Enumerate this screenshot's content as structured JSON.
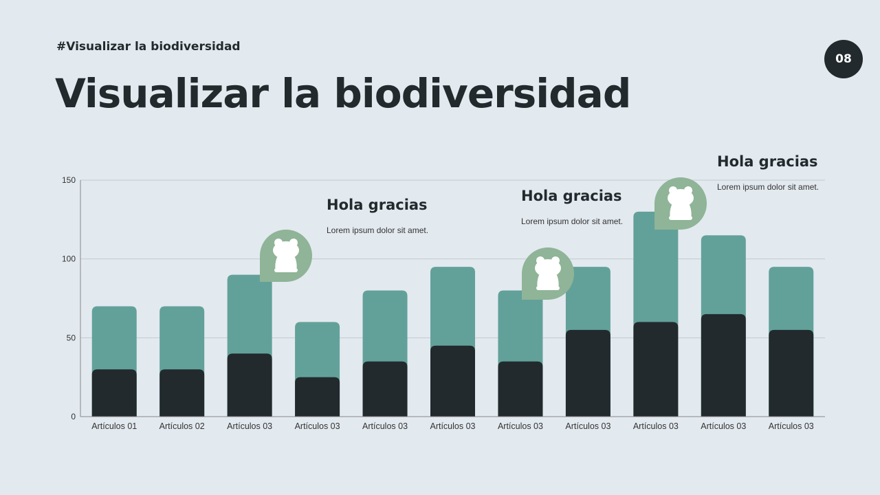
{
  "header": {
    "tag": "#Visualizar la biodiversidad",
    "title": "Visualizar la biodiversidad",
    "page_number": "08"
  },
  "annotations": [
    {
      "title": "Hola gracias",
      "text": "Lorem ipsum dolor sit amet.",
      "icon": "frog-icon"
    },
    {
      "title": "Hola gracias",
      "text": "Lorem ipsum dolor sit amet.",
      "icon": "frog-icon"
    },
    {
      "title": "Hola gracias",
      "text": "Lorem ipsum dolor sit amet.",
      "icon": "frog-icon"
    }
  ],
  "colors": {
    "background": "#e2e9ef",
    "series_dark": "#222a2d",
    "series_teal": "#62a199",
    "bubble": "#8fb497"
  },
  "chart_data": {
    "type": "bar",
    "categories": [
      "Artículos 01",
      "Artículos 02",
      "Artículos 03",
      "Artículos 03",
      "Artículos 03",
      "Artículos 03",
      "Artículos 03",
      "Artículos 03",
      "Artículos 03",
      "Artículos 03",
      "Artículos 03"
    ],
    "series": [
      {
        "values": [
          70,
          70,
          90,
          60,
          80,
          95,
          80,
          95,
          130,
          115,
          95
        ],
        "color": "#62a199"
      },
      {
        "values": [
          30,
          30,
          40,
          25,
          35,
          45,
          35,
          55,
          60,
          65,
          55
        ],
        "color": "#222a2d"
      }
    ],
    "ylim": [
      0,
      150
    ],
    "yticks": [
      "0",
      "50",
      "100",
      "150"
    ],
    "grid": true,
    "title": "",
    "xlabel": "",
    "ylabel": ""
  }
}
